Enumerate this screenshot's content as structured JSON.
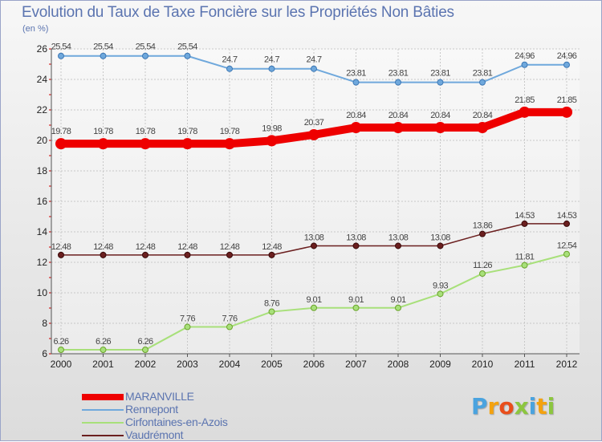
{
  "title": "Evolution du Taux de Taxe Foncière sur les Propriétés Non Bâties",
  "subtitle": "(en %)",
  "logo": {
    "letters": [
      "P",
      "r",
      "o",
      "x",
      "i",
      "t",
      "i"
    ],
    "colors": [
      "#4aa3df",
      "#f4a20f",
      "#e94e1b",
      "#8cc63f",
      "#4aa3df",
      "#f4a20f",
      "#8cc63f"
    ]
  },
  "chart_data": {
    "type": "line",
    "title": "Evolution du Taux de Taxe Foncière sur les Propriétés Non Bâties",
    "ylabel": "(en %)",
    "xlabel": "",
    "ylim": [
      6,
      26
    ],
    "yticks": [
      "6",
      "8",
      "10",
      "12",
      "14",
      "16",
      "18",
      "20",
      "22",
      "24",
      "26"
    ],
    "categories": [
      "2000",
      "2001",
      "2002",
      "2003",
      "2004",
      "2005",
      "2006",
      "2007",
      "2008",
      "2009",
      "2010",
      "2011",
      "2012"
    ],
    "series": [
      {
        "name": "MARANVILLE",
        "color": "#ee0000",
        "width": 10,
        "labels_above": true,
        "values": [
          19.78,
          19.78,
          19.78,
          19.78,
          19.78,
          19.98,
          20.37,
          20.84,
          20.84,
          20.84,
          20.84,
          21.85,
          21.85
        ],
        "labels": [
          "19.78",
          "19.78",
          "19.78",
          "19.78",
          "19.78",
          "19.98",
          "20.37",
          "20.84",
          "20.84",
          "20.84",
          "20.84",
          "21.85",
          "21.85"
        ]
      },
      {
        "name": "Rennepont",
        "color": "#6fa8dc",
        "width": 2,
        "labels_above": false,
        "values": [
          25.54,
          25.54,
          25.54,
          25.54,
          24.7,
          24.7,
          24.7,
          23.81,
          23.81,
          23.81,
          23.81,
          24.96,
          24.96
        ],
        "labels": [
          "25.54",
          "25.54",
          "25.54",
          "25.54",
          "24.7",
          "24.7",
          "24.7",
          "23.81",
          "23.81",
          "23.81",
          "23.81",
          "24.96",
          "24.96"
        ]
      },
      {
        "name": "Cirfontaines-en-Azois",
        "color": "#a8e07a",
        "width": 2,
        "labels_above": true,
        "values": [
          6.26,
          6.26,
          6.26,
          7.76,
          7.76,
          8.76,
          9.01,
          9.01,
          9.01,
          9.93,
          11.26,
          11.81,
          12.54
        ],
        "labels": [
          "6.26",
          "6.26",
          "6.26",
          "7.76",
          "7.76",
          "8.76",
          "9.01",
          "9.01",
          "9.01",
          "9.93",
          "11.26",
          "11.81",
          "12.54"
        ]
      },
      {
        "name": "Vaudrémont",
        "color": "#6b1f1f",
        "width": 1.5,
        "labels_above": true,
        "values": [
          12.48,
          12.48,
          12.48,
          12.48,
          12.48,
          12.48,
          13.08,
          13.08,
          13.08,
          13.08,
          13.86,
          14.53,
          14.53
        ],
        "labels": [
          "12.48",
          "12.48",
          "12.48",
          "12.48",
          "12.48",
          "12.48",
          "13.08",
          "13.08",
          "13.08",
          "13.08",
          "13.86",
          "14.53",
          "14.53"
        ]
      }
    ]
  }
}
